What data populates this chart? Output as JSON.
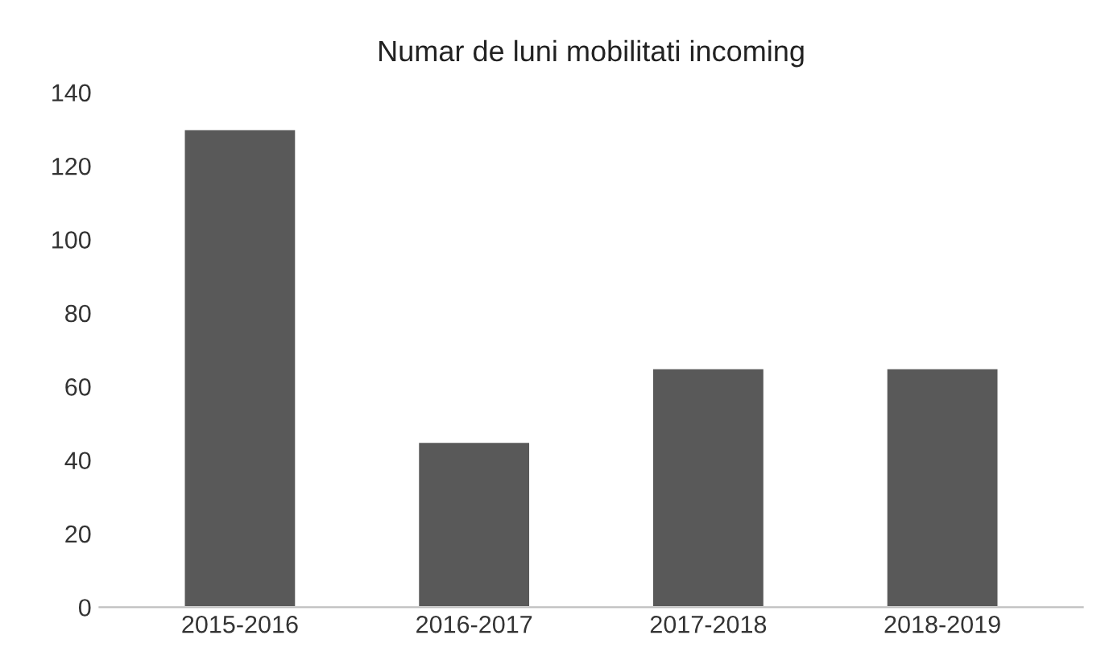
{
  "chart_data": {
    "type": "bar",
    "title": "Numar de luni mobilitati incoming",
    "categories": [
      "2015-2016",
      "2016-2017",
      "2017-2018",
      "2018-2019"
    ],
    "values": [
      130,
      45,
      65,
      65
    ],
    "color": "#595959",
    "ylim": [
      0,
      140
    ],
    "yticks": [
      0,
      20,
      40,
      60,
      80,
      100,
      120,
      140
    ],
    "grid": false
  }
}
